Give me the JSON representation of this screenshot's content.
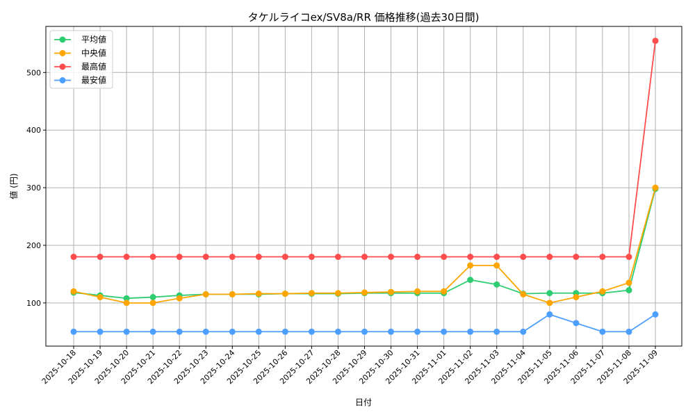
{
  "chart_data": {
    "type": "line",
    "title": "タケルライコex/SV8a/RR 価格推移(過去30日間)",
    "xlabel": "日付",
    "ylabel": "値 (円)",
    "ylim": [
      25,
      580
    ],
    "yticks": [
      100,
      200,
      300,
      400,
      500
    ],
    "grid": true,
    "legend_position": "top-left",
    "categories": [
      "2025-10-18",
      "2025-10-19",
      "2025-10-20",
      "2025-10-21",
      "2025-10-22",
      "2025-10-23",
      "2025-10-24",
      "2025-10-25",
      "2025-10-26",
      "2025-10-27",
      "2025-10-28",
      "2025-10-29",
      "2025-10-30",
      "2025-10-31",
      "2025-11-01",
      "2025-11-02",
      "2025-11-03",
      "2025-11-04",
      "2025-11-05",
      "2025-11-06",
      "2025-11-07",
      "2025-11-08",
      "2025-11-09"
    ],
    "series": [
      {
        "name": "平均値",
        "color": "#2ecc71",
        "values": [
          118,
          113,
          108,
          110,
          113,
          115,
          115,
          115,
          116,
          116,
          116,
          117,
          117,
          117,
          117,
          140,
          132,
          116,
          117,
          117,
          117,
          122,
          298
        ]
      },
      {
        "name": "中央値",
        "color": "#ffa500",
        "values": [
          120,
          110,
          100,
          100,
          108,
          115,
          115,
          116,
          116,
          117,
          117,
          118,
          119,
          120,
          120,
          165,
          165,
          115,
          100,
          110,
          120,
          135,
          300
        ]
      },
      {
        "name": "最高値",
        "color": "#ff4d4d",
        "values": [
          180,
          180,
          180,
          180,
          180,
          180,
          180,
          180,
          180,
          180,
          180,
          180,
          180,
          180,
          180,
          180,
          180,
          180,
          180,
          180,
          180,
          180,
          555
        ]
      },
      {
        "name": "最安値",
        "color": "#4d9fff",
        "values": [
          50,
          50,
          50,
          50,
          50,
          50,
          50,
          50,
          50,
          50,
          50,
          50,
          50,
          50,
          50,
          50,
          50,
          50,
          80,
          65,
          50,
          50,
          80
        ]
      }
    ]
  }
}
